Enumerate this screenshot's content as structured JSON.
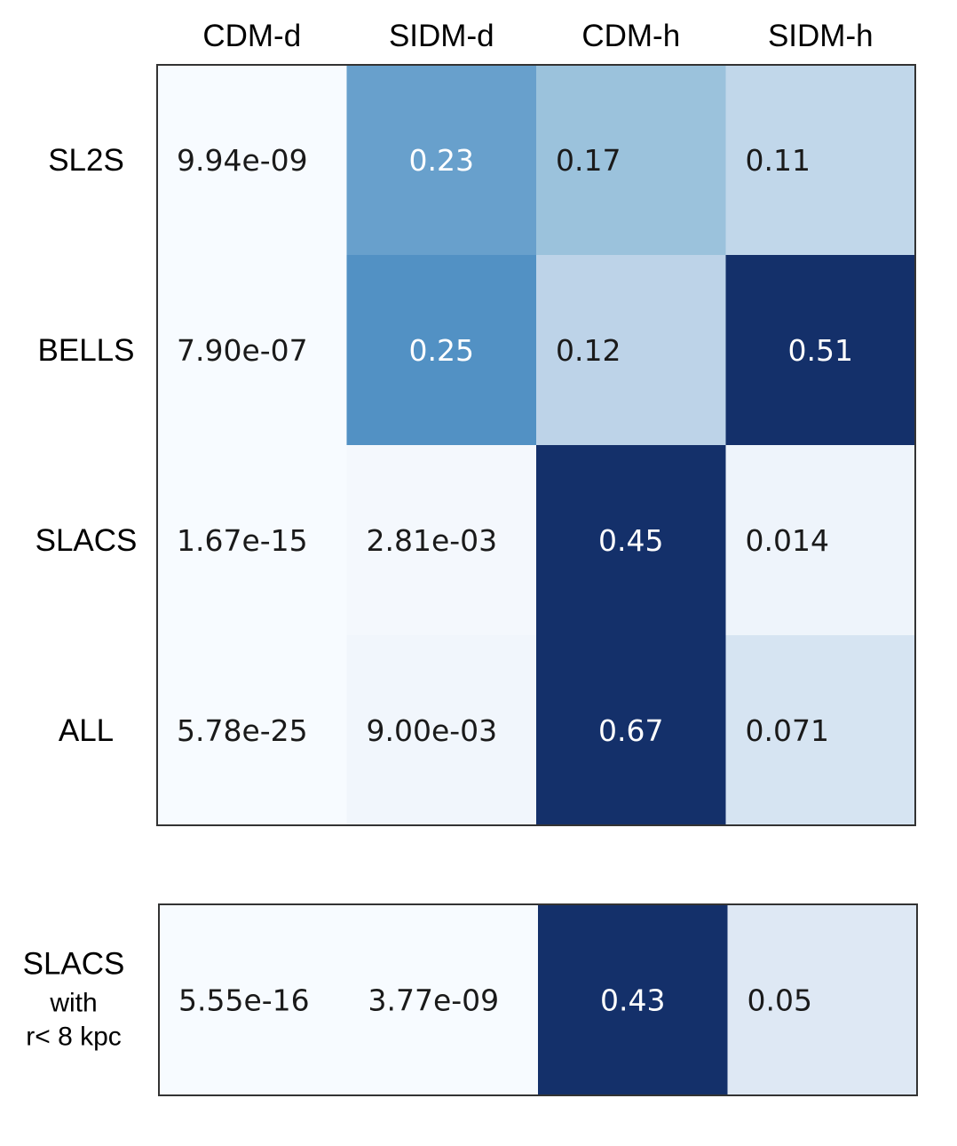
{
  "chart_data": [
    {
      "type": "heatmap",
      "columns": [
        "CDM-d",
        "SIDM-d",
        "CDM-h",
        "SIDM-h"
      ],
      "rows": [
        "SL2S",
        "BELLS",
        "SLACS",
        "ALL"
      ],
      "cells": [
        [
          {
            "label": "9.94e-09",
            "value": 9.94e-09
          },
          {
            "label": "0.23",
            "value": 0.23
          },
          {
            "label": "0.17",
            "value": 0.17
          },
          {
            "label": "0.11",
            "value": 0.11
          }
        ],
        [
          {
            "label": "7.90e-07",
            "value": 7.9e-07
          },
          {
            "label": "0.25",
            "value": 0.25
          },
          {
            "label": "0.12",
            "value": 0.12
          },
          {
            "label": "0.51",
            "value": 0.51
          }
        ],
        [
          {
            "label": "1.67e-15",
            "value": 1.67e-15
          },
          {
            "label": "2.81e-03",
            "value": 0.00281
          },
          {
            "label": "0.45",
            "value": 0.45
          },
          {
            "label": "0.014",
            "value": 0.014
          }
        ],
        [
          {
            "label": "5.78e-25",
            "value": 5.78e-25
          },
          {
            "label": "9.00e-03",
            "value": 0.009
          },
          {
            "label": "0.67",
            "value": 0.67
          },
          {
            "label": "0.071",
            "value": 0.071
          }
        ]
      ],
      "cell_colors": [
        [
          "#f7fbff",
          "#68a0cc",
          "#9bc2dc",
          "#c1d7ea"
        ],
        [
          "#f7fbff",
          "#5291c4",
          "#bdd3e8",
          "#14306a"
        ],
        [
          "#f7fbff",
          "#f4f8fd",
          "#14306a",
          "#eef4fb"
        ],
        [
          "#f7fbff",
          "#f1f6fc",
          "#14306a",
          "#d6e4f2"
        ]
      ],
      "text_colors": [
        [
          "#1a1a1a",
          "#ffffff",
          "#1a1a1a",
          "#1a1a1a"
        ],
        [
          "#1a1a1a",
          "#ffffff",
          "#1a1a1a",
          "#ffffff"
        ],
        [
          "#1a1a1a",
          "#1a1a1a",
          "#ffffff",
          "#1a1a1a"
        ],
        [
          "#1a1a1a",
          "#1a1a1a",
          "#ffffff",
          "#1a1a1a"
        ]
      ]
    },
    {
      "type": "heatmap",
      "columns": [
        "CDM-d",
        "SIDM-d",
        "CDM-h",
        "SIDM-h"
      ],
      "rows": [
        "SLACS with r< 8 kpc"
      ],
      "row_label_lines": [
        "SLACS",
        "with",
        "r< 8 kpc"
      ],
      "cells": [
        [
          {
            "label": "5.55e-16",
            "value": 5.55e-16
          },
          {
            "label": "3.77e-09",
            "value": 3.77e-09
          },
          {
            "label": "0.43",
            "value": 0.43
          },
          {
            "label": "0.05",
            "value": 0.05
          }
        ]
      ],
      "cell_colors": [
        [
          "#f7fbff",
          "#f7fbff",
          "#14306a",
          "#dee8f4"
        ]
      ],
      "text_colors": [
        [
          "#1a1a1a",
          "#1a1a1a",
          "#ffffff",
          "#1a1a1a"
        ]
      ]
    }
  ]
}
